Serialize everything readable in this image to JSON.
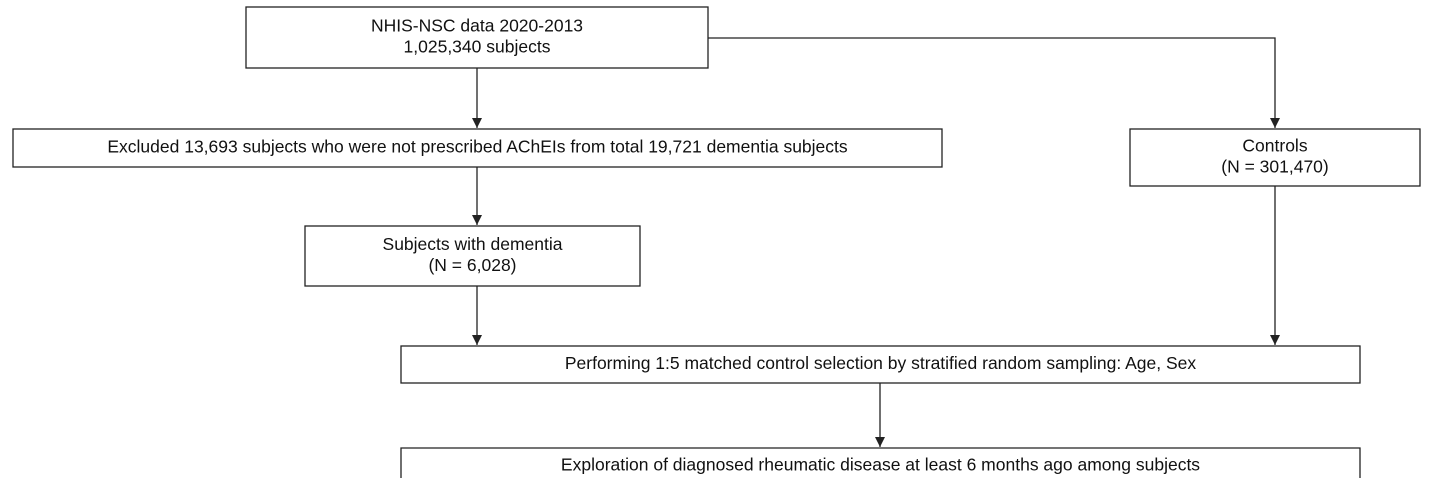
{
  "nodes": [
    {
      "lines": [
        "NHIS-NSC data 2020-2013",
        "1,025,340 subjects"
      ]
    },
    {
      "lines": [
        "Excluded 13,693 subjects who were not prescribed AChEIs from total 19,721 dementia subjects"
      ]
    },
    {
      "lines": [
        "Controls",
        "(N = 301,470)"
      ]
    },
    {
      "lines": [
        "Subjects with dementia",
        "(N = 6,028)"
      ]
    },
    {
      "lines": [
        "Performing 1:5 matched control selection by stratified random sampling: Age, Sex"
      ]
    },
    {
      "lines": [
        "Exploration of diagnosed rheumatic disease at least 6 months ago among subjects"
      ]
    }
  ]
}
